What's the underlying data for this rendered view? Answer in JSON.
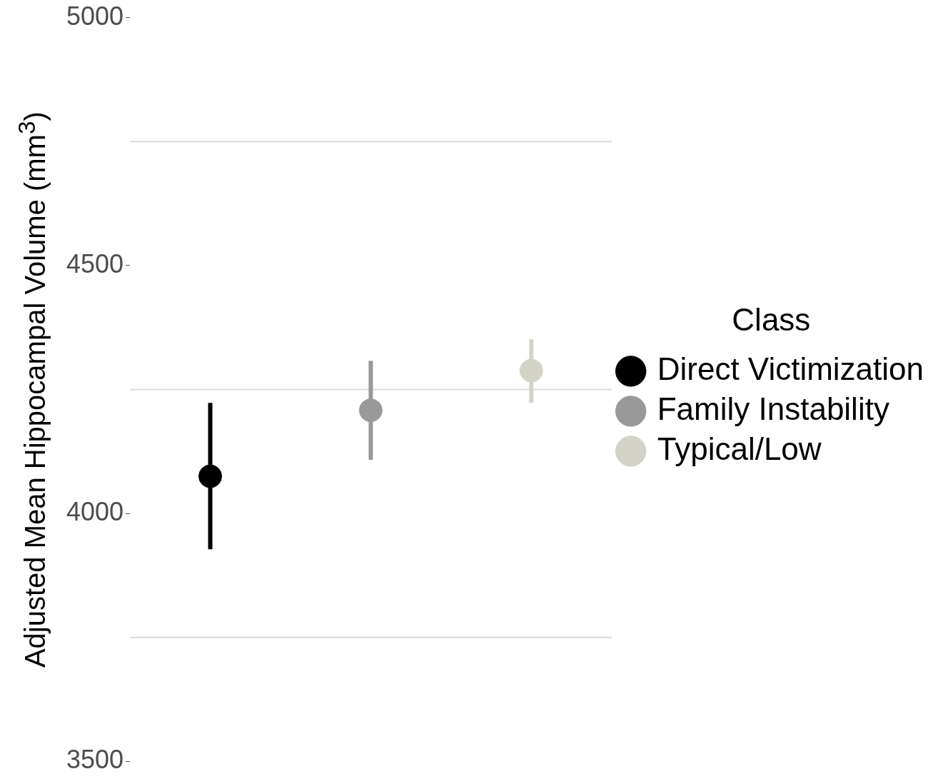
{
  "chart_data": {
    "type": "scatter",
    "ylabel": "Adjusted Mean Hippocampal Volume (mm$^{3}$)",
    "legend_title": "Class",
    "legend": "right",
    "categories": [
      null,
      null,
      null
    ],
    "series": [
      {
        "name": "Direct Victimization",
        "color": "#000000",
        "values": [
          4075,
          null,
          null
        ],
        "errors": [
          [
            3928,
            4223
          ],
          null,
          null
        ]
      },
      {
        "name": "Family Instability",
        "color": "#999999",
        "values": [
          null,
          4208,
          null
        ],
        "errors": [
          null,
          [
            4108,
            4308
          ],
          null
        ]
      },
      {
        "name": "Typical/Low",
        "color": "#d3d3c8",
        "values": [
          null,
          null,
          4288
        ],
        "errors": [
          null,
          null,
          [
            4223,
            4351
          ]
        ]
      }
    ],
    "ylim": [
      3500,
      5000
    ],
    "yticks": [
      3500,
      {
        "value": 3750,
        "label": null
      },
      4000,
      {
        "value": 4250,
        "label": null
      },
      4500,
      {
        "value": 4750,
        "label": null
      },
      5000
    ],
    "grid": "y",
    "tick_labels": "y",
    "marker": "circle"
  }
}
